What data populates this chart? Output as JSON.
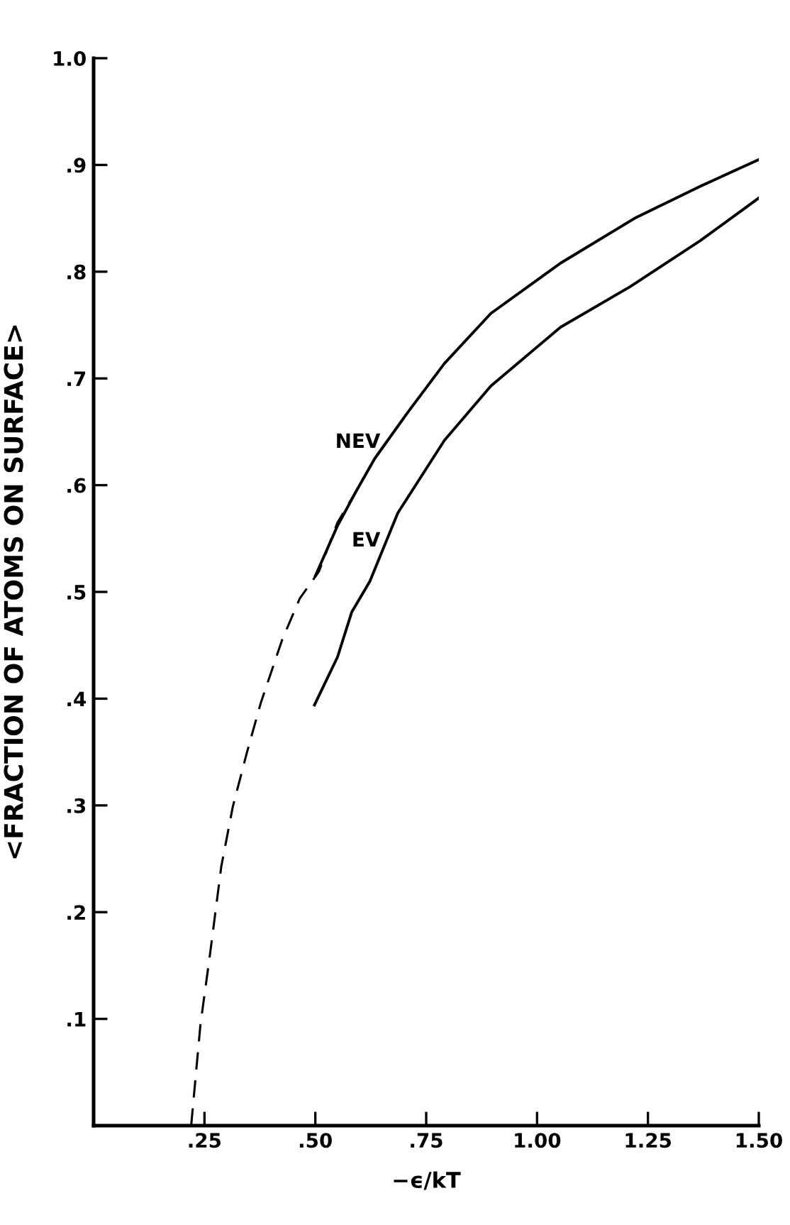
{
  "chart_data": {
    "type": "line",
    "xlabel": "−ϵ/kT",
    "ylabel": "<FRACTION OF ATOMS ON SURFACE>",
    "xlim": [
      0,
      1.5
    ],
    "ylim": [
      0,
      1.0
    ],
    "xticks": [
      {
        "value": 0.25,
        "label": ".25"
      },
      {
        "value": 0.5,
        "label": ".50"
      },
      {
        "value": 0.75,
        "label": ".75"
      },
      {
        "value": 1.0,
        "label": "1.00"
      },
      {
        "value": 1.25,
        "label": "1.25"
      },
      {
        "value": 1.5,
        "label": "1.50"
      }
    ],
    "yticks": [
      {
        "value": 0.1,
        "label": ".1"
      },
      {
        "value": 0.2,
        "label": ".2"
      },
      {
        "value": 0.3,
        "label": ".3"
      },
      {
        "value": 0.4,
        "label": ".4"
      },
      {
        "value": 0.5,
        "label": ".5"
      },
      {
        "value": 0.6,
        "label": ".6"
      },
      {
        "value": 0.7,
        "label": ".7"
      },
      {
        "value": 0.8,
        "label": ".8"
      },
      {
        "value": 0.9,
        "label": ".9"
      },
      {
        "value": 1.0,
        "label": "1.0"
      }
    ],
    "grid": false,
    "legend": false,
    "marker": "none",
    "series": [
      {
        "color": "#000000",
        "line_style": "dashed",
        "x": [
          0.22,
          0.241,
          0.262,
          0.288,
          0.314,
          0.346,
          0.377,
          0.425,
          0.465,
          0.508,
          0.55,
          0.593,
          0.634,
          0.708,
          0.791,
          0.896,
          1.053,
          1.22,
          1.368,
          1.5
        ],
        "values": [
          0.0,
          0.095,
          0.159,
          0.243,
          0.299,
          0.35,
          0.396,
          0.455,
          0.494,
          0.519,
          0.565,
          0.595,
          0.625,
          0.668,
          0.714,
          0.761,
          0.808,
          0.85,
          0.88,
          0.905
        ]
      },
      {
        "name": "NEV",
        "color": "#000000",
        "line_style": "solid",
        "x": [
          0.5,
          0.55,
          0.593,
          0.634,
          0.708,
          0.791,
          0.896,
          1.053,
          1.22,
          1.368,
          1.5
        ],
        "values": [
          0.515,
          0.562,
          0.595,
          0.625,
          0.668,
          0.714,
          0.761,
          0.808,
          0.85,
          0.88,
          0.905
        ]
      },
      {
        "name": "EV",
        "color": "#000000",
        "line_style": "solid",
        "x": [
          0.498,
          0.55,
          0.582,
          0.623,
          0.686,
          0.791,
          0.896,
          1.053,
          1.21,
          1.368,
          1.5
        ],
        "values": [
          0.394,
          0.439,
          0.481,
          0.51,
          0.574,
          0.642,
          0.693,
          0.748,
          0.786,
          0.829,
          0.869
        ]
      }
    ]
  }
}
